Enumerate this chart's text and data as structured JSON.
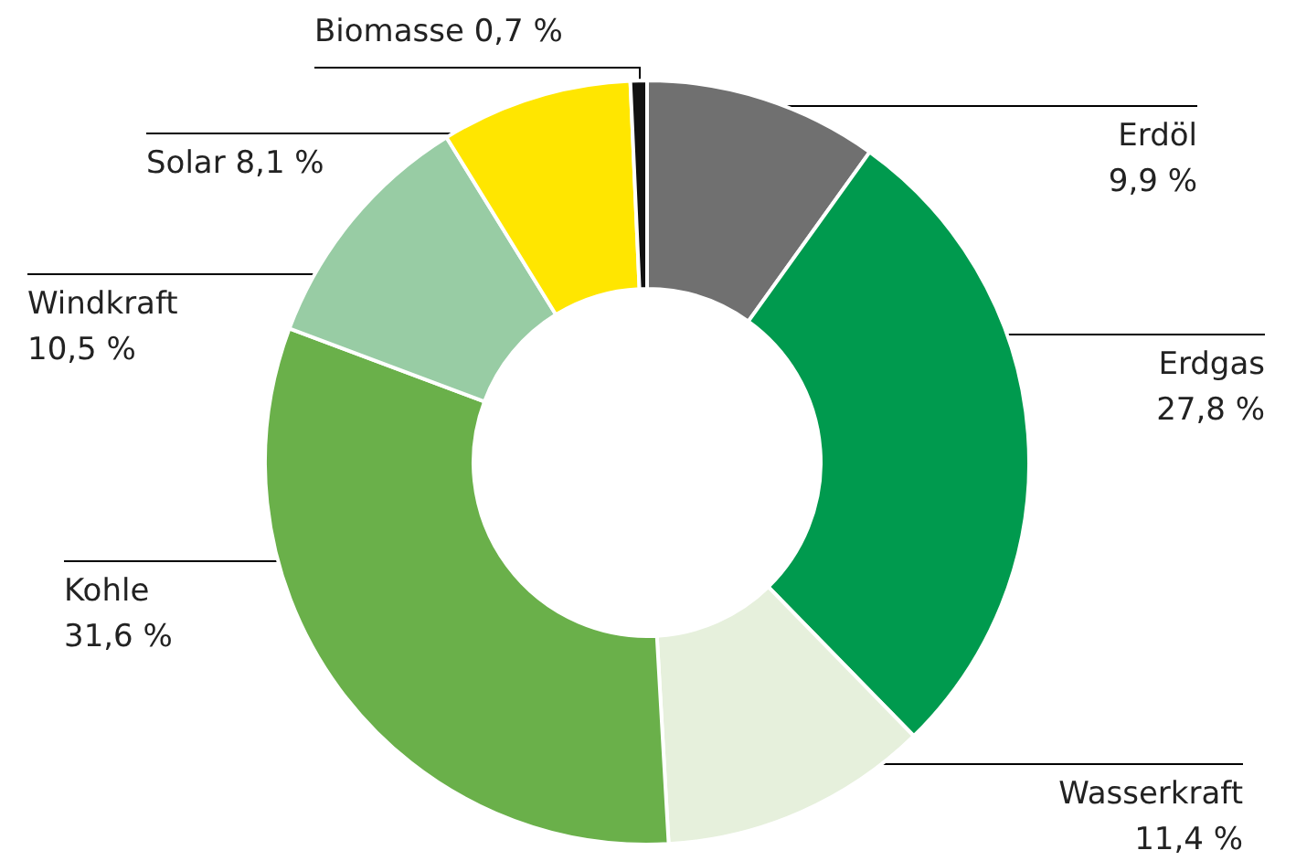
{
  "chart_data": {
    "type": "donut",
    "categories": [
      "Erdöl",
      "Erdgas",
      "Wasserkraft",
      "Kohle",
      "Windkraft",
      "Solar",
      "Biomasse"
    ],
    "values": [
      9.9,
      27.8,
      11.4,
      31.6,
      10.5,
      8.1,
      0.7
    ],
    "colors": [
      "#707070",
      "#009a4e",
      "#e6f0dc",
      "#6ab04a",
      "#98cca4",
      "#ffe600",
      "#111111"
    ],
    "value_labels": [
      "9,9 %",
      "27,8 %",
      "11,4 %",
      "31,6 %",
      "10,5 %",
      "8,1 %",
      "0,7 %"
    ]
  }
}
